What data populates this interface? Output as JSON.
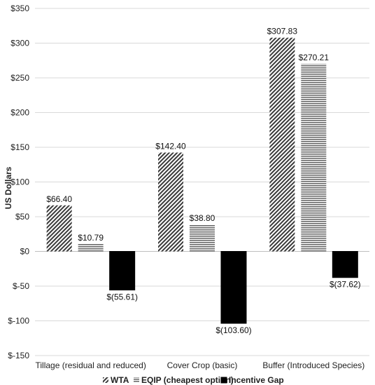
{
  "chart_data": {
    "type": "bar",
    "title": "",
    "xlabel": "",
    "ylabel": "US Dollars",
    "ylim": [
      -150,
      350
    ],
    "y_tick_step": 50,
    "y_tick_labels": [
      "$-150",
      "$-100",
      "$-50",
      "$0",
      "$50",
      "$100",
      "$150",
      "$200",
      "$250",
      "$300",
      "$350"
    ],
    "grid": true,
    "legend_position": "bottom",
    "categories": [
      "Tillage (residual and reduced)",
      "Cover Crop (basic)",
      "Buffer (Introduced Species)"
    ],
    "series": [
      {
        "name": "WTA",
        "values": [
          66.4,
          142.4,
          307.83
        ],
        "labels": [
          "$66.40",
          "$142.40",
          "$307.83"
        ],
        "pattern": "diagonal-hatch",
        "color": "#444444"
      },
      {
        "name": "EQIP (cheapest option)",
        "values": [
          10.79,
          38.8,
          270.21
        ],
        "labels": [
          "$10.79",
          "$38.80",
          "$270.21"
        ],
        "pattern": "horizontal-lines",
        "color": "#777777"
      },
      {
        "name": "Incentive Gap",
        "values": [
          -55.61,
          -103.6,
          -37.62
        ],
        "labels": [
          "$(55.61)",
          "$(103.60)",
          "$(37.62)"
        ],
        "pattern": "solid",
        "color": "#000000"
      }
    ]
  }
}
